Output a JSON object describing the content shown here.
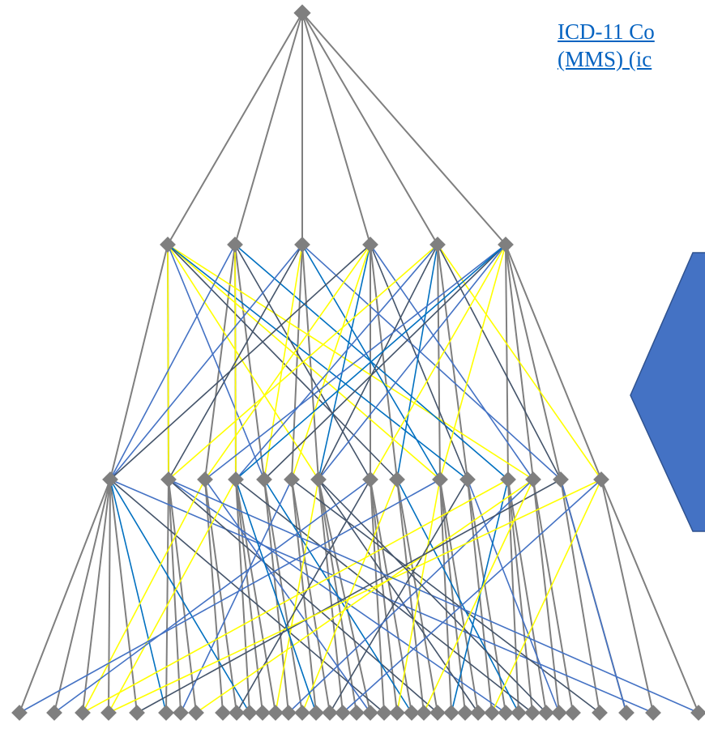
{
  "link": {
    "line1": "ICD-11 Co",
    "line2": "(MMS) (ic"
  },
  "colors": {
    "tree_edge": "#7f7f7f",
    "node": "#7f7f7f",
    "cross_yellow": "#ffff00",
    "cross_blue": "#4472c4",
    "cross_navy": "#44546a",
    "cross_teal": "#0070c0",
    "arrow_fill": "#4472c4",
    "arrow_stroke": "#2f528f"
  },
  "icons": {
    "node": "diamond-node-icon",
    "arrow": "left-arrow-icon"
  }
}
